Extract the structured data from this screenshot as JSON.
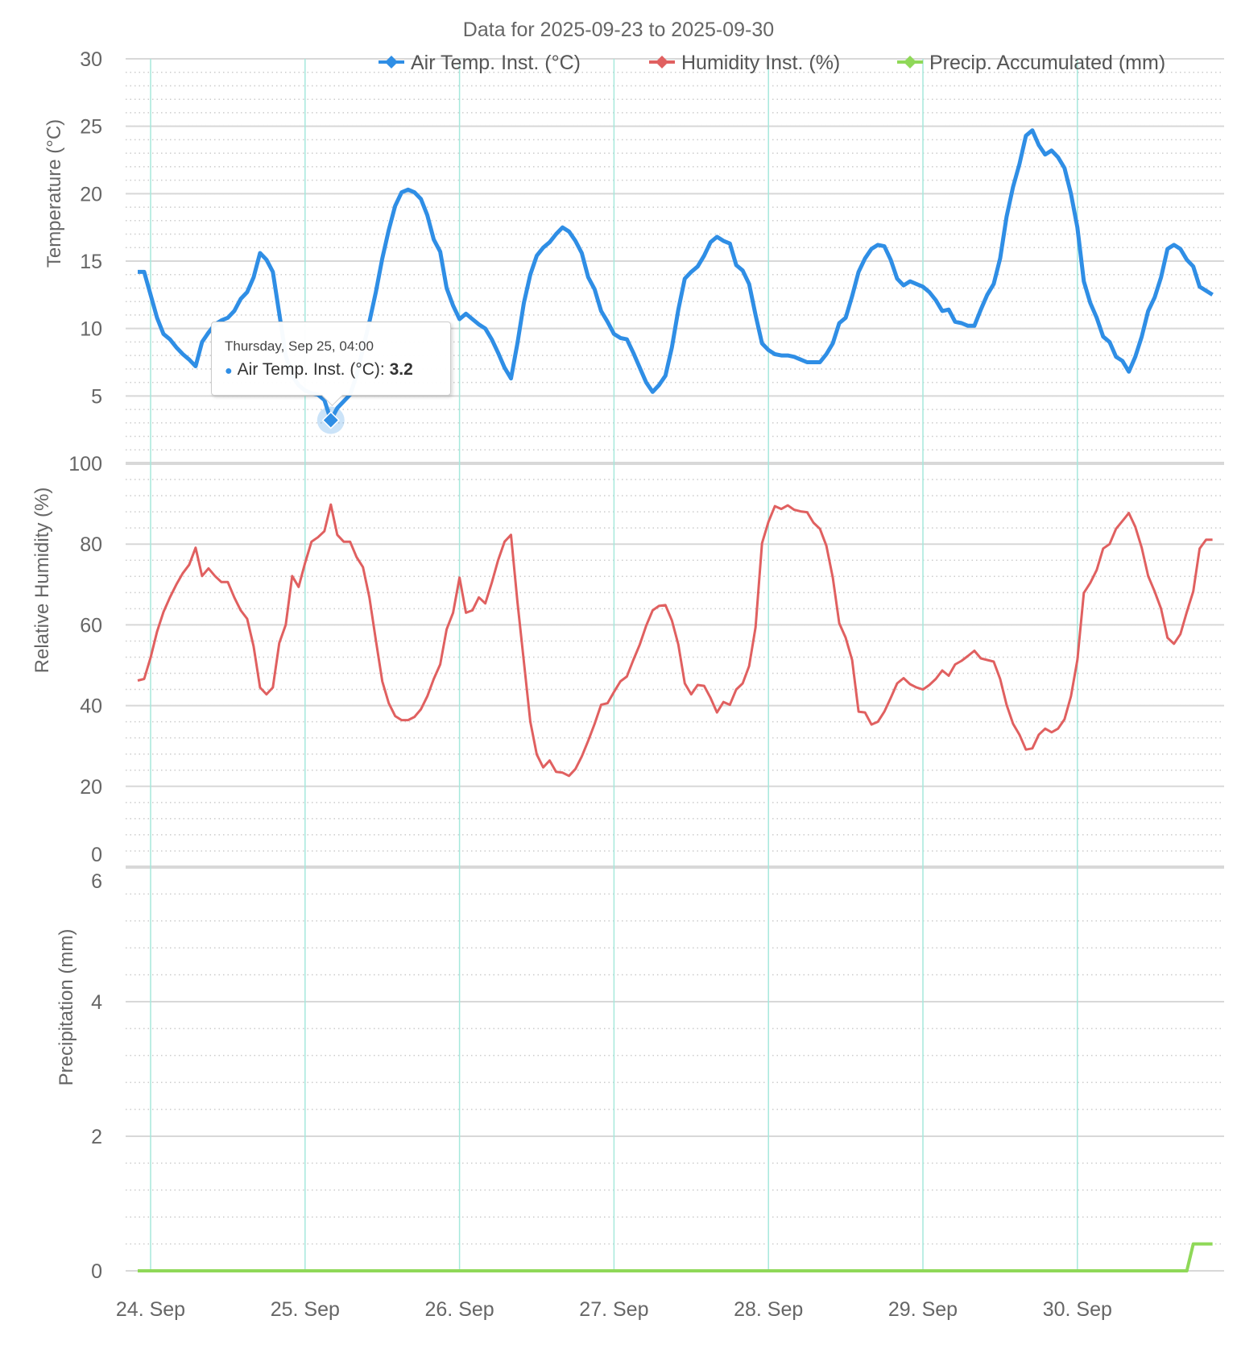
{
  "chart_data": {
    "type": "line",
    "title": "Data for 2025-09-23 to 2025-09-30",
    "x_start": "2025-09-23 22:00",
    "x_step_hours": 1,
    "x_tick_labels": [
      "24. Sep",
      "25. Sep",
      "26. Sep",
      "27. Sep",
      "28. Sep",
      "29. Sep",
      "30. Sep"
    ],
    "legend_position": "top-right",
    "panes": [
      {
        "ylabel": "Temperature (°C)",
        "ylim": [
          0,
          30
        ],
        "ticks": [
          "30",
          "25",
          "20",
          "15",
          "10",
          "5"
        ],
        "tick_values": [
          30,
          25,
          20,
          15,
          10,
          5
        ],
        "minor_step": 1
      },
      {
        "ylabel": "Relative Humidity (%)",
        "ylim": [
          0,
          100
        ],
        "ticks": [
          "100",
          "80",
          "60",
          "40",
          "20",
          "0"
        ],
        "tick_values": [
          100,
          80,
          60,
          40,
          20,
          0
        ],
        "minor_step": 4
      },
      {
        "ylabel": "Precipitation (mm)",
        "ylim": [
          0,
          6
        ],
        "ticks": [
          "6",
          "4",
          "2",
          "0"
        ],
        "tick_values": [
          6,
          4,
          2,
          0
        ],
        "minor_step": 0.4
      }
    ],
    "series": [
      {
        "name": "Air Temp. Inst. (°C)",
        "color": "#2f8ee5",
        "pane": 0,
        "values": [
          14.2,
          14.2,
          12.5,
          10.8,
          9.6,
          9.2,
          8.6,
          8.1,
          7.7,
          7.2,
          9.0,
          9.7,
          10.3,
          10.6,
          10.8,
          11.3,
          12.2,
          12.7,
          13.8,
          15.6,
          15.1,
          14.2,
          11.1,
          8.0,
          6.5,
          5.8,
          5.4,
          5.2,
          5.1,
          4.7,
          3.2,
          4.1,
          4.6,
          5.1,
          6.5,
          8.5,
          10.5,
          12.7,
          15.2,
          17.3,
          19.1,
          20.1,
          20.3,
          20.1,
          19.6,
          18.4,
          16.6,
          15.7,
          13.0,
          11.7,
          10.7,
          11.1,
          10.7,
          10.3,
          10.0,
          9.2,
          8.2,
          7.1,
          6.3,
          8.9,
          11.9,
          14.0,
          15.4,
          16.0,
          16.4,
          17.0,
          17.5,
          17.2,
          16.5,
          15.6,
          13.8,
          12.9,
          11.3,
          10.5,
          9.6,
          9.3,
          9.2,
          8.2,
          7.1,
          6.0,
          5.3,
          5.8,
          6.5,
          8.6,
          11.4,
          13.7,
          14.2,
          14.6,
          15.4,
          16.4,
          16.8,
          16.5,
          16.3,
          14.7,
          14.3,
          13.3,
          11.0,
          8.9,
          8.4,
          8.1,
          8.0,
          8.0,
          7.9,
          7.7,
          7.5,
          7.5,
          7.5,
          8.1,
          8.9,
          10.4,
          10.8,
          12.4,
          14.2,
          15.2,
          15.9,
          16.2,
          16.1,
          15.1,
          13.7,
          13.2,
          13.5,
          13.3,
          13.1,
          12.7,
          12.1,
          11.3,
          11.4,
          10.5,
          10.4,
          10.2,
          10.2,
          11.4,
          12.5,
          13.3,
          15.2,
          18.3,
          20.5,
          22.2,
          24.3,
          24.7,
          23.6,
          22.9,
          23.2,
          22.7,
          21.9,
          20.0,
          17.5,
          13.5,
          11.9,
          10.8,
          9.4,
          9.0,
          7.9,
          7.6,
          6.8,
          7.9,
          9.4,
          11.3,
          12.3,
          13.8,
          15.9,
          16.2,
          15.9,
          15.1,
          14.6,
          13.1,
          12.8,
          12.5
        ]
      },
      {
        "name": "Humidity Inst. (%)",
        "color": "#e06060",
        "pane": 1,
        "values": [
          46.2,
          46.6,
          51.9,
          58.3,
          63.2,
          66.8,
          70.0,
          72.8,
          74.9,
          79.1,
          72.1,
          74,
          72.1,
          70.6,
          70.6,
          66.8,
          63.6,
          61.5,
          54.7,
          44.5,
          42.8,
          44.5,
          55.5,
          60,
          72.1,
          69.4,
          75.3,
          80.6,
          81.7,
          83.2,
          89.8,
          82.3,
          80.6,
          80.6,
          76.8,
          74.3,
          66.8,
          56.2,
          46,
          40.6,
          37.4,
          36.4,
          36.4,
          37.2,
          39.1,
          42.3,
          46.6,
          50.2,
          58.9,
          63,
          71.7,
          63,
          63.6,
          66.8,
          65.3,
          70.4,
          76,
          80.6,
          82.3,
          65.7,
          50.9,
          36,
          27.9,
          24.7,
          26.4,
          23.6,
          23.4,
          22.6,
          24.3,
          27.4,
          31.3,
          35.5,
          40.2,
          40.6,
          43.4,
          46,
          47.2,
          51.3,
          55.1,
          59.8,
          63.6,
          64.7,
          64.9,
          61.1,
          55.1,
          45.5,
          42.8,
          45.1,
          44.9,
          41.9,
          38.3,
          40.9,
          40.2,
          44,
          45.5,
          49.8,
          59.4,
          80.2,
          85.5,
          89.4,
          88.7,
          89.6,
          88.5,
          88.1,
          87.9,
          85.3,
          83.8,
          79.6,
          71.7,
          60.4,
          56.8,
          51.3,
          38.5,
          38.3,
          35.3,
          36,
          38.5,
          41.9,
          45.5,
          46.8,
          45.3,
          44.5,
          44,
          45.1,
          46.6,
          48.7,
          47.4,
          50.2,
          51.1,
          52.3,
          53.6,
          51.7,
          51.3,
          50.9,
          46.6,
          40.2,
          35.5,
          32.8,
          29.1,
          29.4,
          32.8,
          34.3,
          33.4,
          34.3,
          36.6,
          42.3,
          51.3,
          67.9,
          70.4,
          73.6,
          78.9,
          80,
          83.8,
          85.7,
          87.7,
          84.3,
          79.1,
          72.1,
          68.3,
          64,
          56.8,
          55.3,
          57.7,
          63.2,
          68.3,
          78.9,
          81.1,
          81.1
        ]
      },
      {
        "name": "Precip. Accumulated (mm)",
        "color": "#8fd858",
        "pane": 2,
        "values": [
          0,
          0,
          0,
          0,
          0,
          0,
          0,
          0,
          0,
          0,
          0,
          0,
          0,
          0,
          0,
          0,
          0,
          0,
          0,
          0,
          0,
          0,
          0,
          0,
          0,
          0,
          0,
          0,
          0,
          0,
          0,
          0,
          0,
          0,
          0,
          0,
          0,
          0,
          0,
          0,
          0,
          0,
          0,
          0,
          0,
          0,
          0,
          0,
          0,
          0,
          0,
          0,
          0,
          0,
          0,
          0,
          0,
          0,
          0,
          0,
          0,
          0,
          0,
          0,
          0,
          0,
          0,
          0,
          0,
          0,
          0,
          0,
          0,
          0,
          0,
          0,
          0,
          0,
          0,
          0,
          0,
          0,
          0,
          0,
          0,
          0,
          0,
          0,
          0,
          0,
          0,
          0,
          0,
          0,
          0,
          0,
          0,
          0,
          0,
          0,
          0,
          0,
          0,
          0,
          0,
          0,
          0,
          0,
          0,
          0,
          0,
          0,
          0,
          0,
          0,
          0,
          0,
          0,
          0,
          0,
          0,
          0,
          0,
          0,
          0,
          0,
          0,
          0,
          0,
          0,
          0,
          0,
          0,
          0,
          0,
          0,
          0,
          0,
          0,
          0,
          0,
          0,
          0,
          0,
          0,
          0,
          0,
          0,
          0,
          0,
          0,
          0,
          0,
          0,
          0,
          0,
          0,
          0,
          0,
          0,
          0,
          0,
          0,
          0,
          0.4,
          0.4,
          0.4,
          0.4
        ]
      }
    ],
    "tooltip": {
      "date": "Thursday, Sep 25, 04:00",
      "series": "Air Temp. Inst. (°C)",
      "sep": ":",
      "value": "3.2",
      "hour_index": 30
    }
  }
}
